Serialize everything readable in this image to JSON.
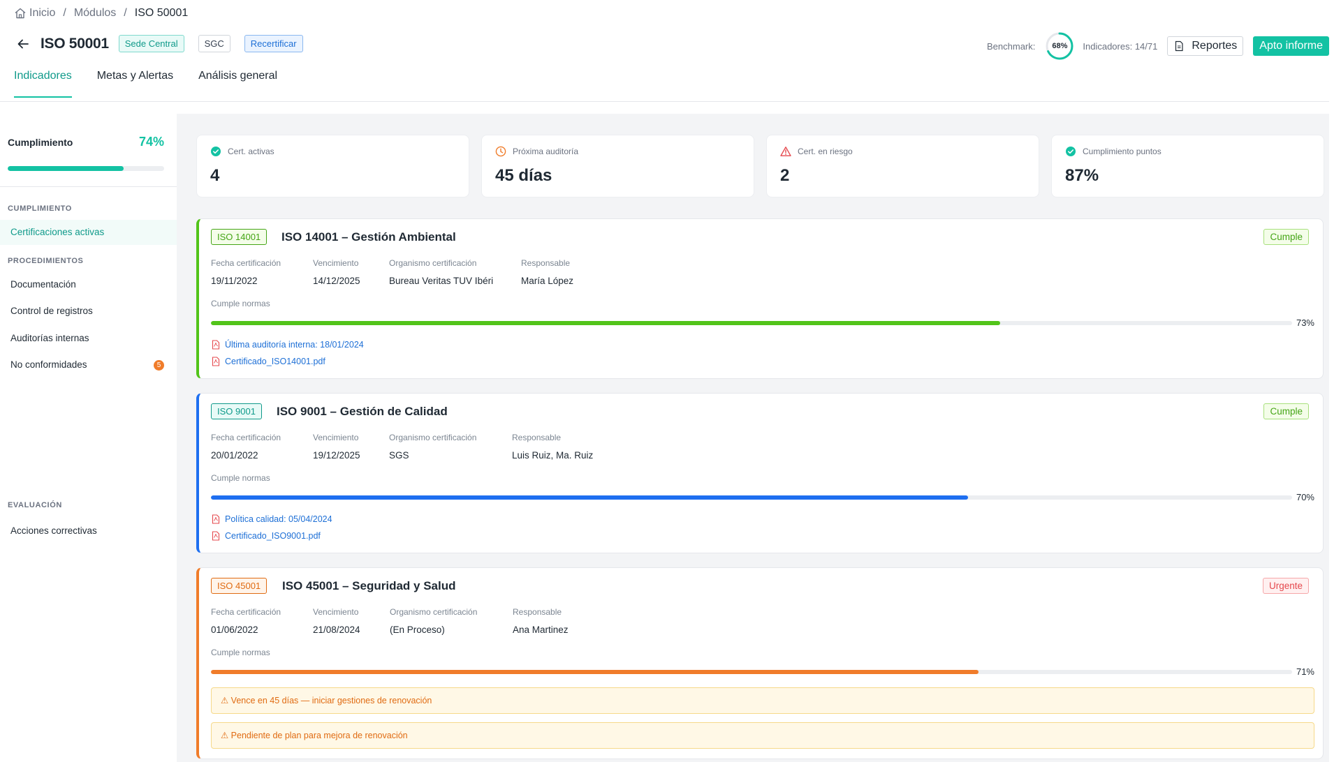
{
  "breadcrumb": {
    "home": "Inicio",
    "modules": "Módulos",
    "current": "ISO 50001"
  },
  "header": {
    "title": "ISO 50001",
    "tags": [
      "Sede Central",
      "SGC",
      "Recertificar"
    ],
    "benchmark_label": "Benchmark:",
    "benchmark_value": "68%",
    "benchmark_fraction": 0.68,
    "indicators": "Indicadores: 14/71",
    "reportes_label": "Reportes",
    "apto_label": "Apto informe"
  },
  "tabs": [
    "Indicadores",
    "Metas y Alertas",
    "Análisis general"
  ],
  "sidebar": {
    "progress_label": "Cumplimiento",
    "progress_value": "74%",
    "progress_fraction": 0.74,
    "sections": [
      "CUMPLIMIENTO",
      "PROCEDIMIENTOS",
      "EVALUACIÓN"
    ],
    "items": [
      {
        "label": "Certificaciones activas"
      },
      {
        "label": "Documentación"
      },
      {
        "label": "Control de registros"
      },
      {
        "label": "Auditorías internas"
      },
      {
        "label": "No conformidades",
        "badge": "5"
      },
      {
        "label": "Acciones correctivas"
      }
    ]
  },
  "kpis": [
    {
      "label": "Cert. activas",
      "value": "4",
      "icon": "check-circle-icon"
    },
    {
      "label": "Próxima auditoría",
      "value": "45 días",
      "icon": "clock-icon"
    },
    {
      "label": "Cert. en riesgo",
      "value": "2",
      "icon": "warning-triangle-icon"
    },
    {
      "label": "Cumplimiento puntos",
      "value": "87%",
      "icon": "check-circle-icon"
    }
  ],
  "field_labels": {
    "cert_date": "Fecha certificación",
    "expiry": "Vencimiento",
    "body": "Organismo certificación",
    "owner": "Responsable",
    "norms": "Cumple normas"
  },
  "certs": [
    {
      "code": "ISO 14001",
      "title": "ISO 14001 – Gestión Ambiental",
      "status": "Cumple",
      "cert_date": "19/11/2022",
      "expiry": "14/12/2025",
      "body": "Bureau Veritas TUV Ibéri",
      "owner": "María López",
      "percent": "73%",
      "fraction": 0.73,
      "color": "#52c41a",
      "links": [
        "Última auditoría interna: 18/01/2024",
        "Certificado_ISO14001.pdf"
      ]
    },
    {
      "code": "ISO 9001",
      "title": "ISO 9001 – Gestión de Calidad",
      "status": "Cumple",
      "cert_date": "20/01/2022",
      "expiry": "19/12/2025",
      "body": "SGS",
      "owner": "Luis Ruiz, Ma. Ruiz",
      "percent": "70%",
      "fraction": 0.7,
      "color": "#1e6ff0",
      "links": [
        "Política calidad: 05/04/2024",
        "Certificado_ISO9001.pdf"
      ]
    },
    {
      "code": "ISO 45001",
      "title": "ISO 45001 – Seguridad y Salud",
      "status": "Urgente",
      "cert_date": "01/06/2022",
      "expiry": "21/08/2024",
      "body": "(En Proceso)",
      "owner": "Ana Martinez",
      "percent": "71%",
      "fraction": 0.71,
      "color": "#f07c2a",
      "warnings": [
        "⚠ Vence en 45 días — iniciar gestiones de renovación",
        "⚠ Pendiente de plan para mejora de renovación"
      ]
    }
  ]
}
